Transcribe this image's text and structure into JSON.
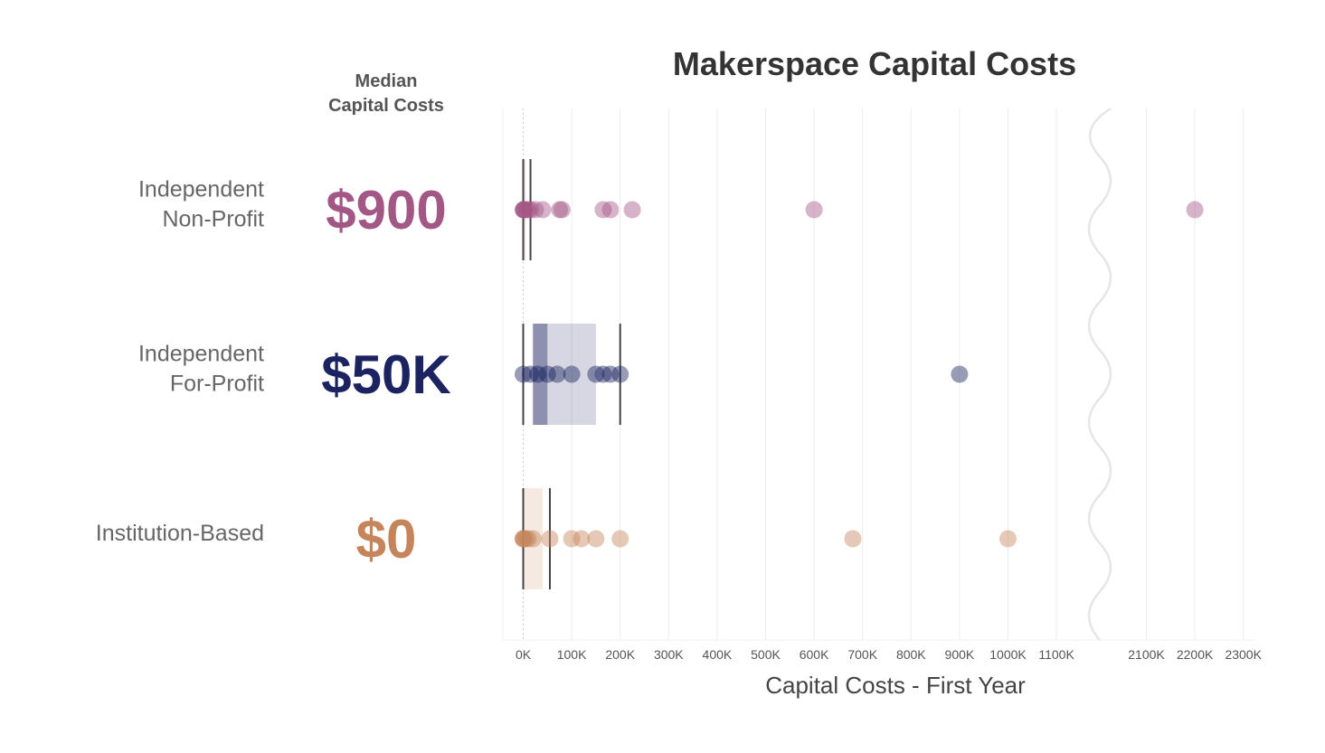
{
  "chart_data": {
    "type": "scatter",
    "title": "Makerspace Capital Costs",
    "median_header": [
      "Median",
      "Capital Costs"
    ],
    "xlabel": "Capital Costs - First Year",
    "ylabel": "",
    "xlim": [
      -40000,
      2350000
    ],
    "axis_break": {
      "from": 1200000,
      "to": 2000000
    },
    "x_tick_labels": [
      {
        "value": 0,
        "label": "0K"
      },
      {
        "value": 100000,
        "label": "100K"
      },
      {
        "value": 200000,
        "label": "200K"
      },
      {
        "value": 300000,
        "label": "300K"
      },
      {
        "value": 400000,
        "label": "400K"
      },
      {
        "value": 500000,
        "label": "500K"
      },
      {
        "value": 600000,
        "label": "600K"
      },
      {
        "value": 700000,
        "label": "700K"
      },
      {
        "value": 800000,
        "label": "800K"
      },
      {
        "value": 900000,
        "label": "900K"
      },
      {
        "value": 1000000,
        "label": "1000K"
      },
      {
        "value": 1100000,
        "label": "1100K"
      },
      {
        "value": 2100000,
        "label": "2100K"
      },
      {
        "value": 2200000,
        "label": "2200K"
      },
      {
        "value": 2300000,
        "label": "2300K"
      }
    ],
    "grid": true,
    "groups": [
      {
        "label_lines": [
          "Independent",
          "Non-Profit"
        ],
        "median_label": "$900",
        "color": "#a35785",
        "points": [
          0,
          500,
          900,
          2000,
          5000,
          10000,
          15000,
          25000,
          40000,
          75000,
          80000,
          165000,
          180000,
          225000,
          600000,
          2200000
        ],
        "box": {
          "q1": 0,
          "median": 900,
          "q3": 5000
        },
        "whiskers": [
          0,
          15000
        ]
      },
      {
        "label_lines": [
          "Independent",
          "For-Profit"
        ],
        "median_label": "$50K",
        "color": "#1b2460",
        "points": [
          0,
          15000,
          30000,
          50000,
          70000,
          100000,
          150000,
          165000,
          180000,
          200000,
          900000
        ],
        "box": {
          "q1": 20000,
          "median": 50000,
          "q3": 150000
        },
        "whiskers": [
          0,
          200000
        ]
      },
      {
        "label_lines": [
          "Institution-Based"
        ],
        "median_label": "$0",
        "color": "#c6845a",
        "points": [
          0,
          0,
          500,
          5000,
          10000,
          20000,
          55000,
          100000,
          120000,
          150000,
          200000,
          680000,
          1000000
        ],
        "box": {
          "q1": 0,
          "median": 0,
          "q3": 40000
        },
        "whiskers": [
          0,
          55000
        ]
      }
    ]
  }
}
